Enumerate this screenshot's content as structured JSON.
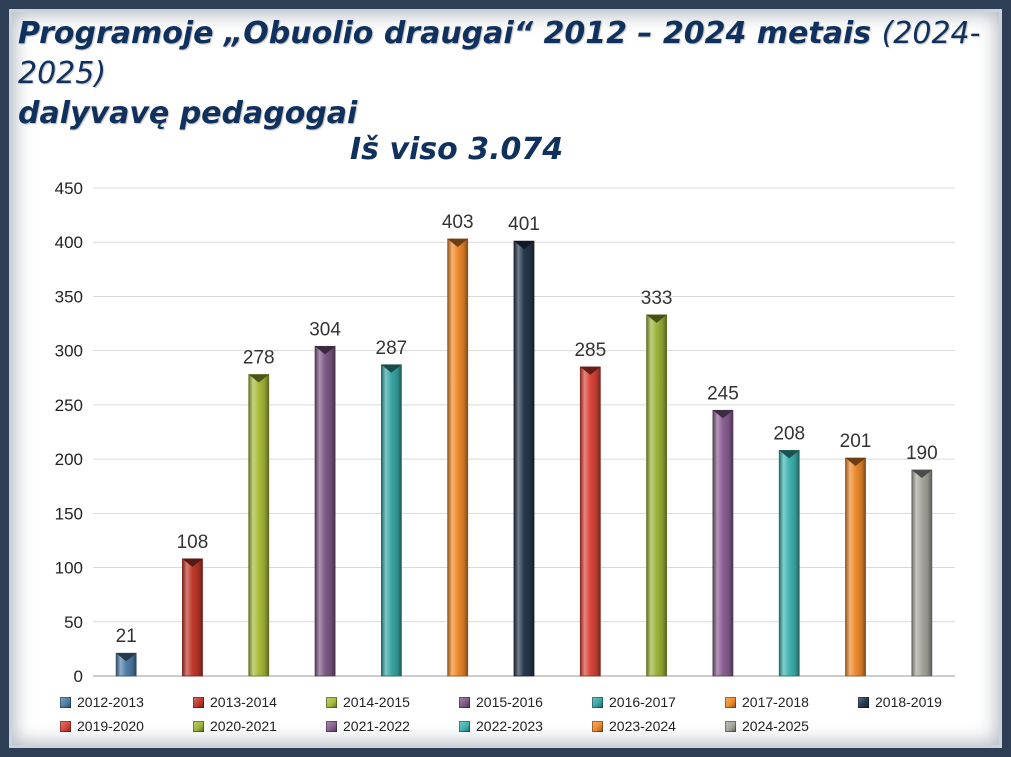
{
  "title": {
    "main": "Programoje „Obuolio draugai“  2012 – 2024 metais",
    "paren": "(2024-2025)",
    "line2": "dalyvavę pedagogai"
  },
  "chart_data": {
    "type": "bar",
    "title": "Iš viso 3.074",
    "categories": [
      "2012-2013",
      "2013-2014",
      "2014-2015",
      "2015-2016",
      "2016-2017",
      "2017-2018",
      "2018-2019",
      "2019-2020",
      "2020-2021",
      "2021-2022",
      "2022-2023",
      "2023-2024",
      "2024-2025"
    ],
    "values": [
      21,
      108,
      278,
      304,
      287,
      403,
      401,
      285,
      333,
      245,
      208,
      201,
      190
    ],
    "colors": [
      "#4f7ea8",
      "#c0392b",
      "#a8bb3c",
      "#7d5b86",
      "#3aa6a6",
      "#ef8a2a",
      "#26384d",
      "#d9453a",
      "#9cb43a",
      "#8a5f93",
      "#3fb3b1",
      "#ee8a2e",
      "#a7a79e"
    ],
    "ylim": [
      0,
      450
    ],
    "yticks": [
      0,
      50,
      100,
      150,
      200,
      250,
      300,
      350,
      400,
      450
    ],
    "grid": true,
    "legend": "bottom"
  }
}
